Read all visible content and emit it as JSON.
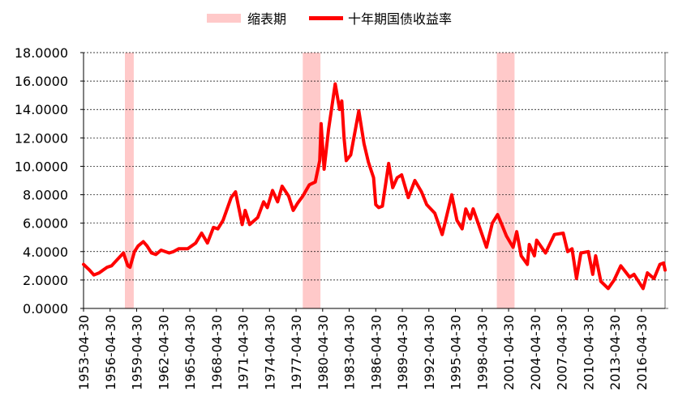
{
  "colors": {
    "recession_fill": "#ffc9c9",
    "yield_line": "#ff0000",
    "grid": "#000000"
  },
  "chart_data": {
    "type": "line",
    "title": "",
    "xlabel": "",
    "ylabel": "",
    "ylim": [
      0,
      18
    ],
    "y_ticks": [
      "0.0000",
      "2.0000",
      "4.0000",
      "6.0000",
      "8.0000",
      "10.0000",
      "12.0000",
      "14.0000",
      "16.0000",
      "18.0000"
    ],
    "x_tick_labels": [
      "1953-04-30",
      "1956-04-30",
      "1959-04-30",
      "1962-04-30",
      "1965-04-30",
      "1968-04-30",
      "1971-04-30",
      "1974-04-30",
      "1977-04-30",
      "1980-04-30",
      "1983-04-30",
      "1986-04-30",
      "1989-04-30",
      "1992-04-30",
      "1995-04-30",
      "1998-04-30",
      "2001-04-30",
      "2004-04-30",
      "2007-04-30",
      "2010-04-30",
      "2013-04-30",
      "2016-04-30"
    ],
    "x_range": [
      "1953-04-30",
      "2018-12-31"
    ],
    "legend_position": "top-center",
    "grid": "horizontal dashed",
    "recessions": {
      "name": "缩表期",
      "periods": [
        [
          "1957-12-31",
          "1958-12-31"
        ],
        [
          "1978-01-31",
          "1980-01-31"
        ],
        [
          "1999-12-31",
          "2001-12-31"
        ]
      ]
    },
    "series": [
      {
        "name": "十年期国债收益率",
        "points": [
          [
            "1953-04-30",
            3.1
          ],
          [
            "1953-12-31",
            2.7
          ],
          [
            "1954-06-30",
            2.35
          ],
          [
            "1955-01-31",
            2.5
          ],
          [
            "1955-12-31",
            2.9
          ],
          [
            "1956-06-30",
            3.0
          ],
          [
            "1957-01-31",
            3.4
          ],
          [
            "1957-10-31",
            3.9
          ],
          [
            "1958-04-30",
            3.0
          ],
          [
            "1958-07-31",
            2.9
          ],
          [
            "1959-01-31",
            4.0
          ],
          [
            "1959-06-30",
            4.4
          ],
          [
            "1960-01-31",
            4.7
          ],
          [
            "1960-06-30",
            4.4
          ],
          [
            "1960-12-31",
            3.9
          ],
          [
            "1961-06-30",
            3.8
          ],
          [
            "1962-01-31",
            4.1
          ],
          [
            "1962-12-31",
            3.9
          ],
          [
            "1963-06-30",
            4.0
          ],
          [
            "1964-01-31",
            4.2
          ],
          [
            "1965-01-31",
            4.2
          ],
          [
            "1965-12-31",
            4.6
          ],
          [
            "1966-08-31",
            5.3
          ],
          [
            "1967-04-30",
            4.6
          ],
          [
            "1967-12-31",
            5.7
          ],
          [
            "1968-06-30",
            5.6
          ],
          [
            "1969-01-31",
            6.2
          ],
          [
            "1969-12-31",
            7.8
          ],
          [
            "1970-06-30",
            8.2
          ],
          [
            "1971-03-31",
            5.9
          ],
          [
            "1971-07-31",
            6.9
          ],
          [
            "1972-01-31",
            5.9
          ],
          [
            "1972-12-31",
            6.4
          ],
          [
            "1973-08-31",
            7.5
          ],
          [
            "1974-01-31",
            7.1
          ],
          [
            "1974-08-31",
            8.3
          ],
          [
            "1975-03-31",
            7.5
          ],
          [
            "1975-09-30",
            8.6
          ],
          [
            "1976-06-30",
            7.9
          ],
          [
            "1976-12-31",
            6.9
          ],
          [
            "1977-06-30",
            7.4
          ],
          [
            "1978-01-31",
            7.9
          ],
          [
            "1978-10-31",
            8.7
          ],
          [
            "1979-06-30",
            8.9
          ],
          [
            "1979-12-31",
            10.4
          ],
          [
            "1980-02-28",
            13.0
          ],
          [
            "1980-06-30",
            9.8
          ],
          [
            "1980-12-31",
            12.6
          ],
          [
            "1981-09-30",
            15.8
          ],
          [
            "1982-03-31",
            14.0
          ],
          [
            "1982-06-30",
            14.6
          ],
          [
            "1982-09-30",
            12.0
          ],
          [
            "1982-12-31",
            10.4
          ],
          [
            "1983-06-30",
            10.8
          ],
          [
            "1984-05-31",
            13.9
          ],
          [
            "1984-12-31",
            11.6
          ],
          [
            "1985-06-30",
            10.3
          ],
          [
            "1986-01-31",
            9.2
          ],
          [
            "1986-04-30",
            7.3
          ],
          [
            "1986-08-31",
            7.1
          ],
          [
            "1987-01-31",
            7.2
          ],
          [
            "1987-10-15",
            10.2
          ],
          [
            "1988-03-31",
            8.5
          ],
          [
            "1988-09-30",
            9.2
          ],
          [
            "1989-03-31",
            9.4
          ],
          [
            "1989-12-31",
            7.8
          ],
          [
            "1990-09-30",
            9.0
          ],
          [
            "1991-06-30",
            8.2
          ],
          [
            "1992-01-31",
            7.3
          ],
          [
            "1992-12-31",
            6.7
          ],
          [
            "1993-10-31",
            5.2
          ],
          [
            "1994-11-30",
            8.0
          ],
          [
            "1995-06-30",
            6.2
          ],
          [
            "1996-01-31",
            5.6
          ],
          [
            "1996-06-30",
            7.0
          ],
          [
            "1996-12-31",
            6.3
          ],
          [
            "1997-04-30",
            7.0
          ],
          [
            "1997-12-31",
            5.8
          ],
          [
            "1998-10-31",
            4.3
          ],
          [
            "1999-06-30",
            6.0
          ],
          [
            "2000-01-31",
            6.6
          ],
          [
            "2000-06-30",
            6.0
          ],
          [
            "2001-01-31",
            5.1
          ],
          [
            "2001-10-31",
            4.3
          ],
          [
            "2002-03-31",
            5.4
          ],
          [
            "2002-09-30",
            3.7
          ],
          [
            "2003-06-13",
            3.1
          ],
          [
            "2003-08-31",
            4.5
          ],
          [
            "2004-03-31",
            3.7
          ],
          [
            "2004-06-30",
            4.8
          ],
          [
            "2005-06-30",
            3.9
          ],
          [
            "2006-06-30",
            5.2
          ],
          [
            "2007-06-30",
            5.3
          ],
          [
            "2007-12-31",
            4.0
          ],
          [
            "2008-06-30",
            4.2
          ],
          [
            "2008-12-31",
            2.1
          ],
          [
            "2009-06-30",
            3.9
          ],
          [
            "2010-04-30",
            4.0
          ],
          [
            "2010-10-31",
            2.4
          ],
          [
            "2011-02-28",
            3.7
          ],
          [
            "2011-09-30",
            1.9
          ],
          [
            "2012-07-31",
            1.4
          ],
          [
            "2013-03-31",
            2.0
          ],
          [
            "2013-12-31",
            3.0
          ],
          [
            "2014-12-31",
            2.2
          ],
          [
            "2015-06-30",
            2.4
          ],
          [
            "2016-07-08",
            1.4
          ],
          [
            "2016-12-31",
            2.5
          ],
          [
            "2017-09-30",
            2.1
          ],
          [
            "2018-05-31",
            3.1
          ],
          [
            "2018-10-31",
            3.2
          ],
          [
            "2018-12-31",
            2.7
          ]
        ]
      }
    ]
  }
}
